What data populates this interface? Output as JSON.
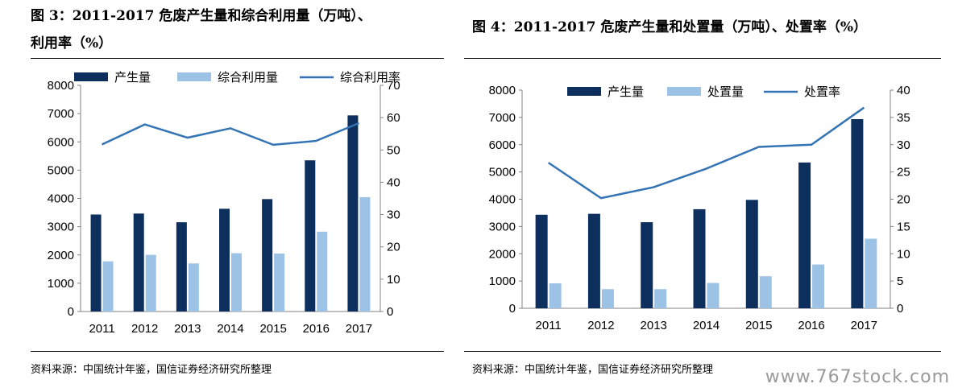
{
  "colors": {
    "bar_primary": "#0d2f5e",
    "bar_secondary": "#9cc3e6",
    "line": "#3474b4"
  },
  "left": {
    "title_line1": "图 3：2011-2017 危废产生量和综合利用量（万吨）、",
    "title_line2": "利用率（%）",
    "source": "资料来源：中国统计年鉴，国信证券经济研究所整理"
  },
  "right": {
    "title_line1": "图 4：2011-2017 危废产生量和处置量（万吨）、处置率（%）",
    "source": "资料来源：中国统计年鉴，国信证券经济研究所整理"
  },
  "watermark": "www.767stock.com",
  "chart_data": [
    {
      "type": "bar",
      "categories": [
        "2011",
        "2012",
        "2013",
        "2014",
        "2015",
        "2016",
        "2017"
      ],
      "series": [
        {
          "name": "产生量",
          "kind": "bar",
          "axis": "left",
          "values": [
            3431,
            3465,
            3157,
            3634,
            3976,
            5347,
            6937
          ]
        },
        {
          "name": "综合利用量",
          "kind": "bar",
          "axis": "left",
          "values": [
            1773,
            2005,
            1700,
            2062,
            2050,
            2824,
            4043
          ]
        },
        {
          "name": "综合利用率",
          "kind": "line",
          "axis": "right",
          "values": [
            51.7,
            57.9,
            53.8,
            56.7,
            51.6,
            52.8,
            58.3
          ]
        }
      ],
      "ylim_left": [
        0,
        8000
      ],
      "yticks_left": [
        0,
        1000,
        2000,
        3000,
        4000,
        5000,
        6000,
        7000,
        8000
      ],
      "ylim_right": [
        0,
        70
      ],
      "yticks_right": [
        0,
        10,
        20,
        30,
        40,
        50,
        60,
        70
      ],
      "grid": false,
      "legend": "top"
    },
    {
      "type": "bar",
      "categories": [
        "2011",
        "2012",
        "2013",
        "2014",
        "2015",
        "2016",
        "2017"
      ],
      "series": [
        {
          "name": "产生量",
          "kind": "bar",
          "axis": "left",
          "values": [
            3431,
            3465,
            3157,
            3634,
            3976,
            5347,
            6937
          ]
        },
        {
          "name": "处置量",
          "kind": "bar",
          "axis": "left",
          "values": [
            916,
            701,
            701,
            929,
            1175,
            1606,
            2552
          ]
        },
        {
          "name": "处置率",
          "kind": "line",
          "axis": "right",
          "values": [
            26.7,
            20.2,
            22.2,
            25.6,
            29.6,
            30.0,
            36.8
          ]
        }
      ],
      "ylim_left": [
        0,
        8000
      ],
      "yticks_left": [
        0,
        1000,
        2000,
        3000,
        4000,
        5000,
        6000,
        7000,
        8000
      ],
      "ylim_right": [
        0,
        40
      ],
      "yticks_right": [
        0,
        5,
        10,
        15,
        20,
        25,
        30,
        35,
        40
      ],
      "grid": false,
      "legend": "top"
    }
  ]
}
